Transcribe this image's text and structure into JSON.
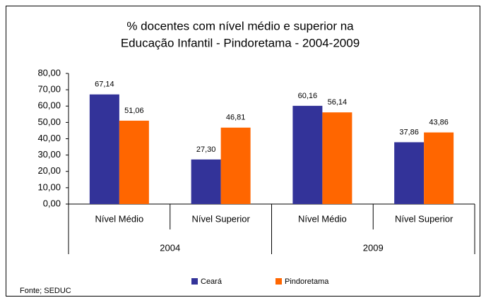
{
  "chart_data": {
    "type": "bar",
    "title": [
      "% docentes com nível médio e superior na",
      "Educação Infantil - Pindoretama - 2004-2009"
    ],
    "categories": [
      "Nível Médio",
      "Nível Superior",
      "Nível Médio",
      "Nível Superior"
    ],
    "groups": [
      "2004",
      "2009"
    ],
    "series": [
      {
        "name": "Ceará",
        "color": "#333399",
        "values": [
          67.14,
          27.3,
          60.16,
          37.86
        ],
        "value_labels": [
          "67,14",
          "27,30",
          "60,16",
          "37,86"
        ]
      },
      {
        "name": "Pindoretama",
        "color": "#ff6600",
        "values": [
          51.06,
          46.81,
          56.14,
          43.86
        ],
        "value_labels": [
          "51,06",
          "46,81",
          "56,14",
          "43,86"
        ]
      }
    ],
    "ylim": [
      0,
      80
    ],
    "yticks": [
      {
        "value": 0,
        "label": "0,00"
      },
      {
        "value": 10,
        "label": "10,00"
      },
      {
        "value": 20,
        "label": "20,00"
      },
      {
        "value": 30,
        "label": "30,00"
      },
      {
        "value": 40,
        "label": "40,00"
      },
      {
        "value": 50,
        "label": "50,00"
      },
      {
        "value": 60,
        "label": "60,00"
      },
      {
        "value": 70,
        "label": "70,00"
      },
      {
        "value": 80,
        "label": "80,00"
      }
    ],
    "grid": false,
    "legend": "bottom",
    "source": "Fonte; SEDUC"
  }
}
